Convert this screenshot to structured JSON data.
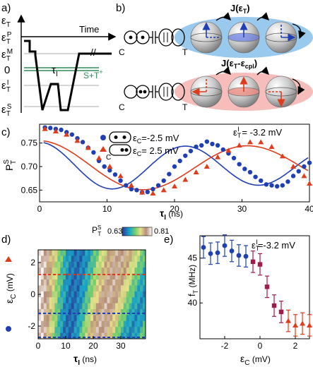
{
  "panel_labels": {
    "a": "a)",
    "b": "b)",
    "c": "c)",
    "d": "d)",
    "e": "e)"
  },
  "panel_a": {
    "levels": [
      "ε",
      "ε",
      "ε",
      "0",
      "ε",
      "ε"
    ],
    "level_subs": [
      "T",
      "T",
      "T",
      "",
      "T",
      "T"
    ],
    "level_sups": [
      "",
      "P",
      "M",
      "",
      "I",
      "S"
    ],
    "time_label": "Time",
    "tau_label": "τ",
    "tau_sub": "I",
    "st_label": "S+T",
    "st_sup": "+",
    "colors": {
      "pulse": "#000000",
      "st_lines": "#2e8b57"
    }
  },
  "panel_b": {
    "j_top": "J(ε",
    "j_top_sub": "T",
    "j_top_end": ")",
    "j_bot": "J(ε",
    "j_bot_sub": "T",
    "j_bot_mid": "-ε",
    "j_bot_sub2": "cpl",
    "j_bot_end": ")",
    "c_top": "C",
    "c_bot": "C",
    "t_top": "T",
    "t_bot": "T",
    "colors": {
      "top_ellipse": "#8ec3ea",
      "bottom_ellipse": "#f6b6b3",
      "blue_arrow": "#1f3fb4",
      "red_arrow": "#e03c1c"
    }
  },
  "panel_c": {
    "ylabel": "P",
    "ylabel_sup": "S",
    "ylabel_sub": "T",
    "xlabel": "τ",
    "xlabel_sub": "I",
    "xunit": " (ns)",
    "legend": [
      {
        "label": "ε",
        "sub": "C",
        "value": "=-2.5 mV",
        "color": "#1f3fb4",
        "marker": "circle"
      },
      {
        "label": "ε",
        "sub": "C",
        "value": "= 2.5 mV",
        "color": "#e03c1c",
        "marker": "triangle"
      }
    ],
    "annotation": "ε",
    "annotation_sub": "T",
    "annotation_sup": "I",
    "annotation_value": " = -3.2 mV",
    "legend_c": "C"
  },
  "panel_d": {
    "ylabel": "ε",
    "ylabel_sub": "C",
    "ylabel_unit": " (mV)",
    "xlabel": "τ",
    "xlabel_sub": "I",
    "xunit": " (ns)",
    "colorbar_label": "P",
    "colorbar_sup": "S",
    "colorbar_sub": "T",
    "colorbar_min": "0.63",
    "colorbar_max": "0.81",
    "colors": {
      "red_dash": "#e03c1c",
      "blue_dash": "#1f3fb4"
    }
  },
  "panel_e": {
    "ylabel": "f",
    "ylabel_sub": "T",
    "ylabel_unit": " (MHz)",
    "xlabel": "ε",
    "xlabel_sub": "C",
    "xunit": " (mV)",
    "annotation": "ε",
    "annotation_sub": "T",
    "annotation_sup": "I",
    "annotation_value": "=-3.2 mV"
  },
  "chart_data": [
    {
      "panel": "c",
      "type": "scatter",
      "xlim": [
        0,
        40
      ],
      "ylim": [
        0.625,
        0.79
      ],
      "xticks": [
        0,
        10,
        20,
        30,
        40
      ],
      "yticks": [
        0.65,
        0.7,
        0.75
      ],
      "series": [
        {
          "name": "ε_C=-2.5 mV",
          "color": "#1f3fb4",
          "marker": "circle",
          "points": [
            [
              0.8,
              0.783
            ],
            [
              1.6,
              0.782
            ],
            [
              2.4,
              0.78
            ],
            [
              3.2,
              0.778
            ],
            [
              4.0,
              0.773
            ],
            [
              4.8,
              0.768
            ],
            [
              5.6,
              0.76
            ],
            [
              6.4,
              0.752
            ],
            [
              7.2,
              0.74
            ],
            [
              8.0,
              0.73
            ],
            [
              8.8,
              0.712
            ],
            [
              9.6,
              0.7
            ],
            [
              10.4,
              0.692
            ],
            [
              11.2,
              0.683
            ],
            [
              12.0,
              0.67
            ],
            [
              12.8,
              0.66
            ],
            [
              13.6,
              0.652
            ],
            [
              14.4,
              0.65
            ],
            [
              15.2,
              0.645
            ],
            [
              16.0,
              0.646
            ],
            [
              16.8,
              0.652
            ],
            [
              17.6,
              0.66
            ],
            [
              18.4,
              0.67
            ],
            [
              19.2,
              0.684
            ],
            [
              20.0,
              0.7
            ],
            [
              20.8,
              0.712
            ],
            [
              21.6,
              0.723
            ],
            [
              22.4,
              0.733
            ],
            [
              23.2,
              0.742
            ],
            [
              24.0,
              0.745
            ],
            [
              24.8,
              0.753
            ],
            [
              25.6,
              0.748
            ],
            [
              26.4,
              0.745
            ],
            [
              27.2,
              0.736
            ],
            [
              28.0,
              0.728
            ],
            [
              28.8,
              0.718
            ],
            [
              29.6,
              0.705
            ],
            [
              30.4,
              0.695
            ],
            [
              31.2,
              0.688
            ],
            [
              32.0,
              0.678
            ],
            [
              32.8,
              0.67
            ],
            [
              33.6,
              0.662
            ],
            [
              34.4,
              0.66
            ],
            [
              35.2,
              0.658
            ],
            [
              36.0,
              0.66
            ],
            [
              36.8,
              0.668
            ],
            [
              37.6,
              0.68
            ],
            [
              38.4,
              0.69
            ],
            [
              39.2,
              0.7
            ],
            [
              40.0,
              0.708
            ]
          ]
        },
        {
          "name": "ε_C= 2.5 mV",
          "color": "#e03c1c",
          "marker": "triangle",
          "points": [
            [
              0.8,
              0.78
            ],
            [
              2.4,
              0.775
            ],
            [
              4.0,
              0.768
            ],
            [
              5.6,
              0.755
            ],
            [
              7.2,
              0.74
            ],
            [
              8.8,
              0.718
            ],
            [
              10.4,
              0.7
            ],
            [
              12.0,
              0.68
            ],
            [
              13.6,
              0.66
            ],
            [
              15.2,
              0.645
            ],
            [
              16.8,
              0.643
            ],
            [
              18.4,
              0.65
            ],
            [
              20.0,
              0.658
            ],
            [
              21.6,
              0.672
            ],
            [
              23.2,
              0.688
            ],
            [
              24.8,
              0.7
            ],
            [
              26.4,
              0.72
            ],
            [
              28.0,
              0.734
            ],
            [
              29.6,
              0.745
            ],
            [
              31.2,
              0.752
            ],
            [
              32.8,
              0.752
            ],
            [
              34.4,
              0.742
            ],
            [
              36.0,
              0.722
            ],
            [
              37.6,
              0.7
            ],
            [
              39.2,
              0.68
            ],
            [
              40.0,
              0.664
            ]
          ]
        }
      ],
      "fits": [
        {
          "name": "ε_C=-2.5 mV fit",
          "color": "#1f3fb4",
          "amplitude": 0.052,
          "offset": 0.7,
          "period_ns": 21.7,
          "decay_ns": 120
        },
        {
          "name": "ε_C= 2.5 mV fit",
          "color": "#e03c1c",
          "amplitude": 0.055,
          "offset": 0.7,
          "period_ns": 31.0,
          "decay_ns": 140
        }
      ]
    },
    {
      "panel": "d",
      "type": "heatmap",
      "xlim": [
        0,
        39
      ],
      "ylim": [
        -2.8,
        2.8
      ],
      "xticks": [
        0,
        10,
        20,
        30
      ],
      "yticks": [
        -2,
        0,
        2
      ],
      "zlim": [
        0.63,
        0.81
      ]
    },
    {
      "panel": "e",
      "type": "scatter",
      "xlim": [
        -3.4,
        2.8
      ],
      "ylim": [
        36,
        47.5
      ],
      "xticks": [
        -2,
        0,
        2
      ],
      "yticks": [
        40,
        45
      ],
      "series": [
        {
          "name": "negative",
          "color": "#1f3fb4",
          "marker": "circle",
          "points": [
            [
              -3.2,
              46.2
            ],
            [
              -2.8,
              45.5
            ],
            [
              -2.4,
              45.6
            ],
            [
              -2.0,
              46.4
            ],
            [
              -1.6,
              45.8
            ],
            [
              -1.2,
              45.3
            ],
            [
              -0.8,
              45.2
            ]
          ]
        },
        {
          "name": "middle",
          "color": "#a01a4a",
          "marker": "square",
          "points": [
            [
              -0.4,
              44.6
            ],
            [
              0.0,
              44.3
            ],
            [
              0.4,
              41.8
            ],
            [
              0.8,
              39.7
            ],
            [
              1.2,
              39.0
            ]
          ]
        },
        {
          "name": "positive",
          "color": "#e03c1c",
          "marker": "triangle",
          "points": [
            [
              1.6,
              38.0
            ],
            [
              2.0,
              37.5
            ],
            [
              2.4,
              37.7
            ],
            [
              2.8,
              37.5
            ]
          ]
        }
      ],
      "error": 1.2
    }
  ]
}
